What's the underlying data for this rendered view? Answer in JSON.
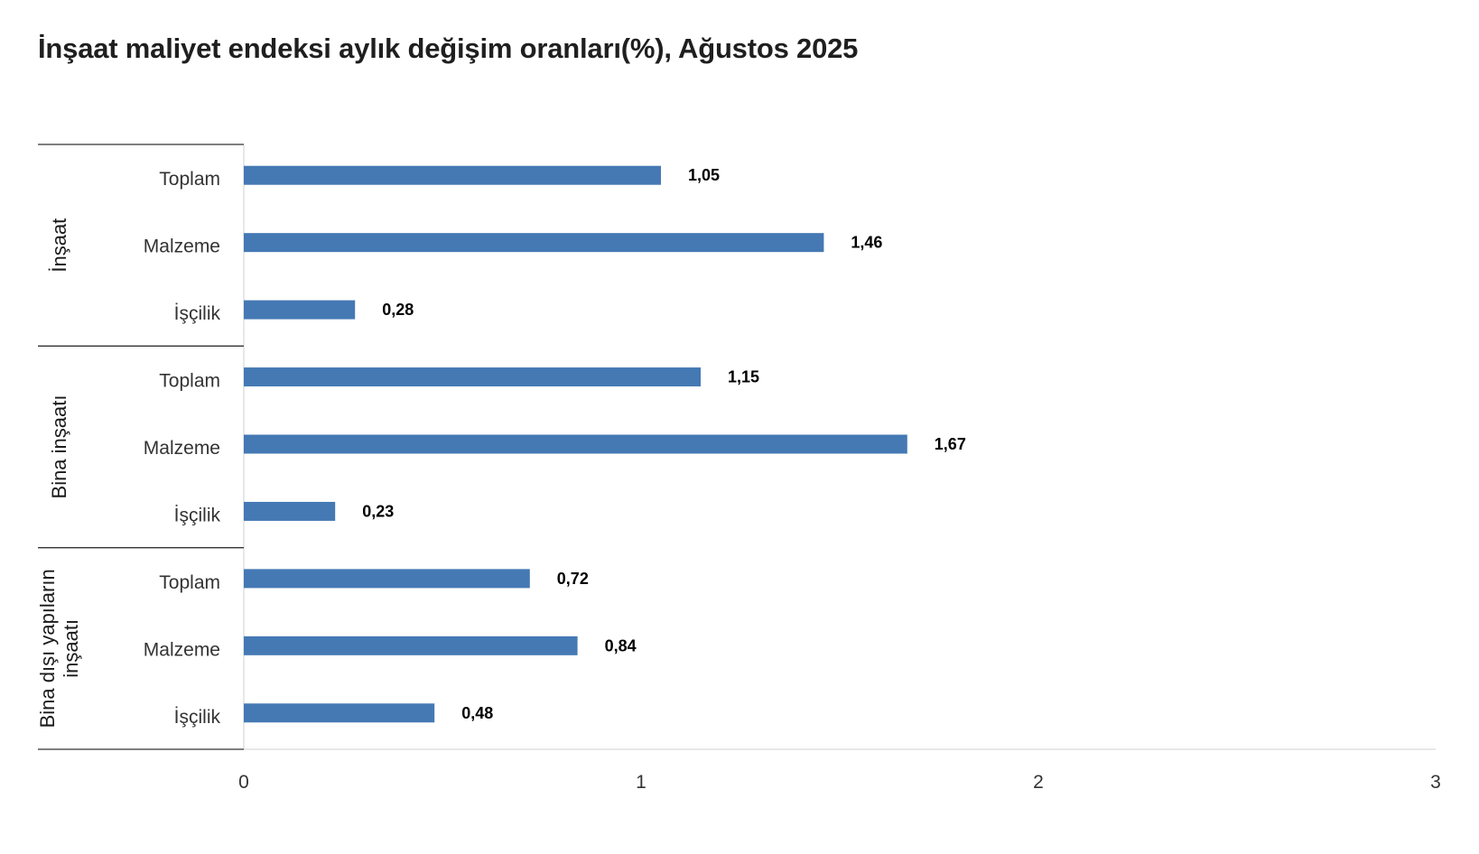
{
  "title": "İnşaat maliyet endeksi aylık değişim oranları(%), Ağustos 2025",
  "chart_data": {
    "type": "bar",
    "orientation": "horizontal",
    "title": "İnşaat maliyet endeksi aylık değişim oranları(%), Ağustos 2025",
    "xlabel": "",
    "ylabel": "",
    "xlim": [
      0,
      3
    ],
    "x_ticks": [
      "0",
      "1",
      "2",
      "3"
    ],
    "bar_color": "#4479b4",
    "grid": false,
    "legend": "none",
    "groups": [
      {
        "name": [
          "İnşaat"
        ],
        "categories": [
          "Toplam",
          "Malzeme",
          "İşçilik"
        ],
        "values": [
          1.05,
          1.46,
          0.28
        ],
        "value_labels": [
          "1,05",
          "1,46",
          "0,28"
        ]
      },
      {
        "name": [
          "Bina inşaatı"
        ],
        "categories": [
          "Toplam",
          "Malzeme",
          "İşçilik"
        ],
        "values": [
          1.15,
          1.67,
          0.23
        ],
        "value_labels": [
          "1,15",
          "1,67",
          "0,23"
        ]
      },
      {
        "name": [
          "Bina dışı yapıların",
          "inşaatı"
        ],
        "categories": [
          "Toplam",
          "Malzeme",
          "İşçilik"
        ],
        "values": [
          0.72,
          0.84,
          0.48
        ],
        "value_labels": [
          "0,72",
          "0,84",
          "0,48"
        ]
      }
    ]
  }
}
